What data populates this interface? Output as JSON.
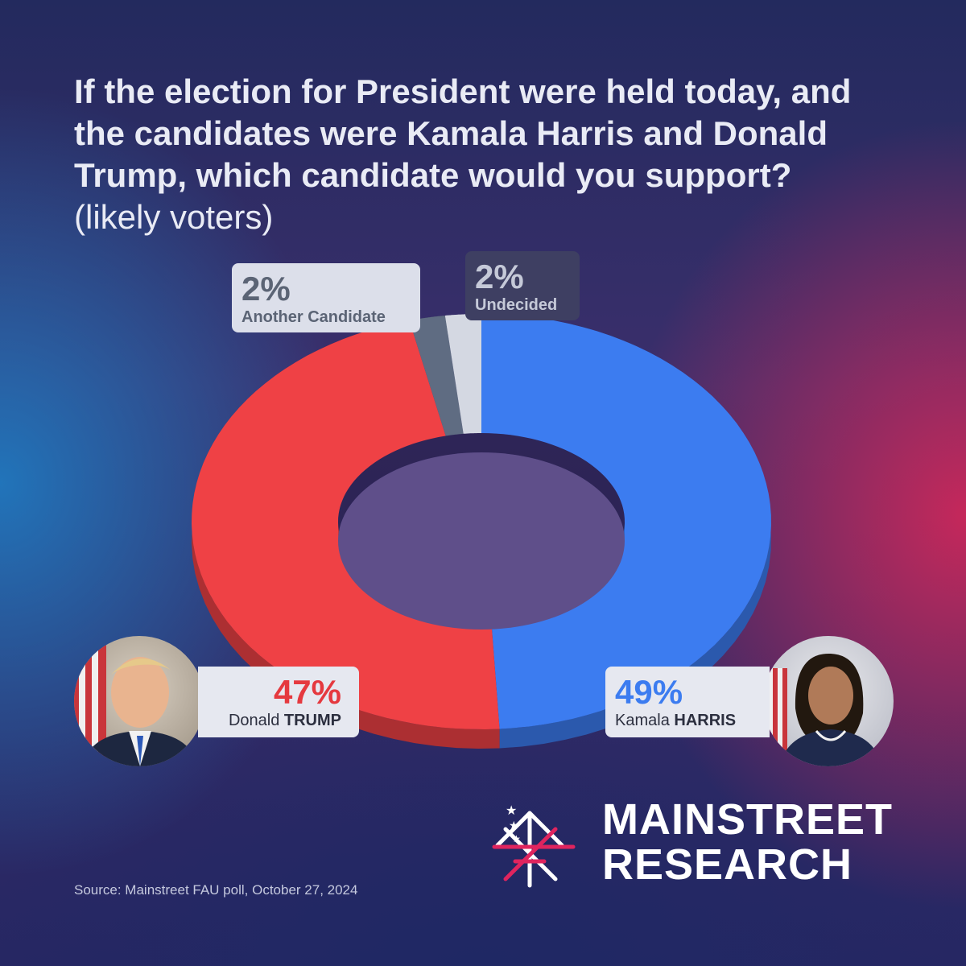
{
  "title": {
    "main": "If the election for President were held today, and the candidates were Kamala Harris and Donald Trump, which candidate would you support?",
    "qualifier": "(likely voters)"
  },
  "chart_data": {
    "type": "pie",
    "variant": "donut",
    "unit": "%",
    "slices": [
      {
        "label": "Kamala HARRIS",
        "first": "Kamala",
        "last": "HARRIS",
        "value": 49,
        "display": "49%",
        "color": "#3c7cf0"
      },
      {
        "label": "Donald TRUMP",
        "first": "Donald",
        "last": "TRUMP",
        "value": 47,
        "display": "47%",
        "color": "#ef4145"
      },
      {
        "label": "Another Candidate",
        "value": 2,
        "display": "2%",
        "color": "#5f6c82"
      },
      {
        "label": "Undecided",
        "value": 2,
        "display": "2%",
        "color": "#d4d8e2"
      }
    ]
  },
  "brand": {
    "line1": "MAINSTREET",
    "line2": "RESEARCH"
  },
  "source": "Source: Mainstreet FAU poll, October 27, 2024"
}
